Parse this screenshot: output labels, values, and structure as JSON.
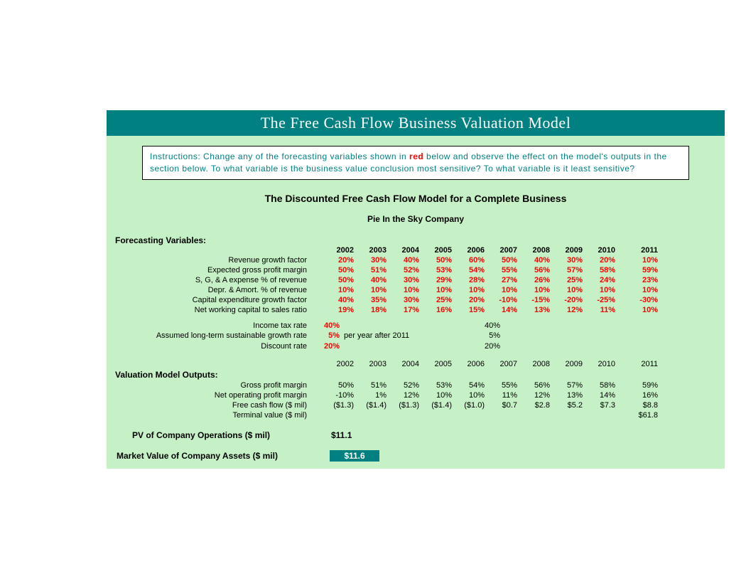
{
  "title_bar": "The Free Cash Flow Business Valuation Model",
  "colors": {
    "title_bg": "#008080",
    "title_fg": "#ffffff",
    "content_bg": "#c6f0c6",
    "instr_bg": "#ffffff",
    "instr_fg": "#008080",
    "red": "#ff0000",
    "black": "#000000",
    "mv_bg": "#008080",
    "mv_fg": "#ffffff"
  },
  "instructions": {
    "prefix": "Instructions:   Change any of the forecasting variables shown in ",
    "red_word": "red",
    "suffix": " below and observe the effect on the model's outputs in the section below.  To what variable is the business value conclusion most sensitive?  To what variable is it least sensitive?"
  },
  "heading": "The Discounted Free Cash Flow Model for a Complete Business",
  "company": "Pie In the Sky Company",
  "forecast_section_label": "Forecasting Variables:",
  "years": [
    "2002",
    "2003",
    "2004",
    "2005",
    "2006",
    "2007",
    "2008",
    "2009",
    "2010",
    "2011"
  ],
  "forecast_rows": [
    {
      "label": "Revenue growth factor",
      "values": [
        "20%",
        "30%",
        "40%",
        "50%",
        "60%",
        "50%",
        "40%",
        "30%",
        "20%",
        "10%"
      ]
    },
    {
      "label": "Expected gross profit margin",
      "values": [
        "50%",
        "51%",
        "52%",
        "53%",
        "54%",
        "55%",
        "56%",
        "57%",
        "58%",
        "59%"
      ]
    },
    {
      "label": "S, G, & A expense % of revenue",
      "values": [
        "50%",
        "40%",
        "30%",
        "29%",
        "28%",
        "27%",
        "26%",
        "25%",
        "24%",
        "23%"
      ]
    },
    {
      "label": "Depr. & Amort. % of revenue",
      "values": [
        "10%",
        "10%",
        "10%",
        "10%",
        "10%",
        "10%",
        "10%",
        "10%",
        "10%",
        "10%"
      ]
    },
    {
      "label": "Capital expenditure growth factor",
      "values": [
        "40%",
        "35%",
        "30%",
        "25%",
        "20%",
        "-10%",
        "-15%",
        "-20%",
        "-25%",
        "-30%"
      ]
    },
    {
      "label": "Net working capital to sales ratio",
      "values": [
        "19%",
        "18%",
        "17%",
        "16%",
        "15%",
        "14%",
        "13%",
        "12%",
        "11%",
        "10%"
      ]
    }
  ],
  "assumptions": {
    "tax": {
      "label": "Income tax rate",
      "value": "40%",
      "echo": "40%"
    },
    "growth": {
      "label": "Assumed long-term sustainable growth rate",
      "value": "5%",
      "note": "per year after 2011",
      "echo": "5%"
    },
    "discount": {
      "label": "Discount rate",
      "value": "20%",
      "echo": "20%"
    }
  },
  "outputs_section_label": "Valuation Model Outputs:",
  "output_rows": [
    {
      "label": "Gross profit margin",
      "values": [
        "50%",
        "51%",
        "52%",
        "53%",
        "54%",
        "55%",
        "56%",
        "57%",
        "58%",
        "59%"
      ]
    },
    {
      "label": "Net operating profit margin",
      "values": [
        "-10%",
        "1%",
        "12%",
        "10%",
        "10%",
        "11%",
        "12%",
        "13%",
        "14%",
        "16%"
      ]
    },
    {
      "label": "Free cash flow ($ mil)",
      "values": [
        "($1.3)",
        "($1.4)",
        "($1.3)",
        "($1.4)",
        "($1.0)",
        "$0.7",
        "$2.8",
        "$5.2",
        "$7.3",
        "$8.8"
      ]
    },
    {
      "label": "Terminal value ($ mil)",
      "values": [
        "",
        "",
        "",
        "",
        "",
        "",
        "",
        "",
        "",
        "$61.8"
      ]
    }
  ],
  "pv": {
    "label": "PV of Company Operations ($ mil)",
    "value": "$11.1"
  },
  "mv": {
    "label": "Market Value of Company Assets ($ mil)",
    "value": "$11.6"
  }
}
